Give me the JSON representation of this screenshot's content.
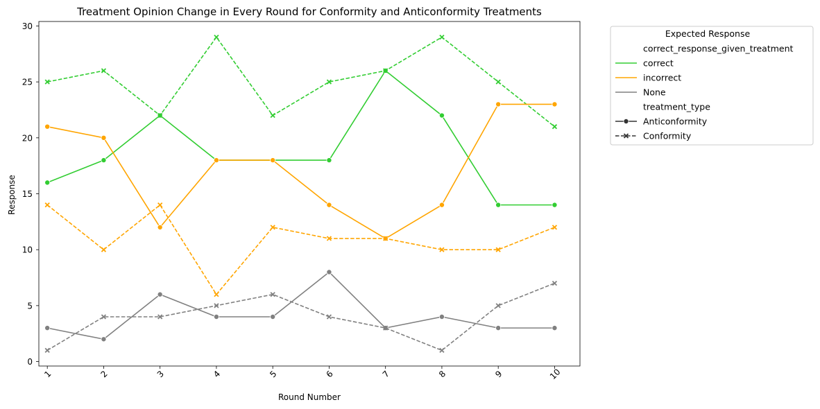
{
  "chart_data": {
    "type": "line",
    "title": "Treatment Opinion Change in Every Round for Conformity and Anticonformity Treatments",
    "xlabel": "Round Number",
    "ylabel": "Response",
    "x": [
      1,
      2,
      3,
      4,
      5,
      6,
      7,
      8,
      9,
      10
    ],
    "x_tick_labels": [
      "1",
      "2",
      "3",
      "4",
      "5",
      "6",
      "7",
      "8",
      "9",
      "10"
    ],
    "y_ticks": [
      0,
      5,
      10,
      15,
      20,
      25,
      30
    ],
    "y_tick_labels": [
      "0",
      "5",
      "10",
      "15",
      "20",
      "25",
      "30"
    ],
    "xlim": [
      0.85,
      10.45
    ],
    "ylim": [
      -0.4,
      30.4
    ],
    "grid": false,
    "colors": {
      "correct": "#32cd32",
      "incorrect": "#ffa500",
      "None": "#808080"
    },
    "series": [
      {
        "response": "correct",
        "treatment": "Anticonformity",
        "values": [
          16,
          18,
          22,
          18,
          18,
          18,
          26,
          22,
          14,
          14
        ]
      },
      {
        "response": "correct",
        "treatment": "Conformity",
        "values": [
          25,
          26,
          22,
          29,
          22,
          25,
          26,
          29,
          25,
          21
        ]
      },
      {
        "response": "incorrect",
        "treatment": "Anticonformity",
        "values": [
          21,
          20,
          12,
          18,
          18,
          14,
          11,
          14,
          23,
          23
        ]
      },
      {
        "response": "incorrect",
        "treatment": "Conformity",
        "values": [
          14,
          10,
          14,
          6,
          12,
          11,
          11,
          10,
          10,
          12
        ]
      },
      {
        "response": "None",
        "treatment": "Anticonformity",
        "values": [
          3,
          2,
          6,
          4,
          4,
          8,
          3,
          4,
          3,
          3
        ]
      },
      {
        "response": "None",
        "treatment": "Conformity",
        "values": [
          1,
          4,
          4,
          5,
          6,
          4,
          3,
          1,
          5,
          7
        ]
      }
    ],
    "legend": {
      "title": "Expected Response",
      "placement": "outside-upper-right",
      "entries": [
        {
          "label": "correct_response_given_treatment",
          "kind": "header"
        },
        {
          "label": "correct",
          "kind": "hue",
          "color": "#32cd32"
        },
        {
          "label": "incorrect",
          "kind": "hue",
          "color": "#ffa500"
        },
        {
          "label": "None",
          "kind": "hue",
          "color": "#808080"
        },
        {
          "label": "treatment_type",
          "kind": "header"
        },
        {
          "label": "Anticonformity",
          "kind": "style",
          "style": "solid-circle"
        },
        {
          "label": "Conformity",
          "kind": "style",
          "style": "dashed-x"
        }
      ]
    }
  }
}
